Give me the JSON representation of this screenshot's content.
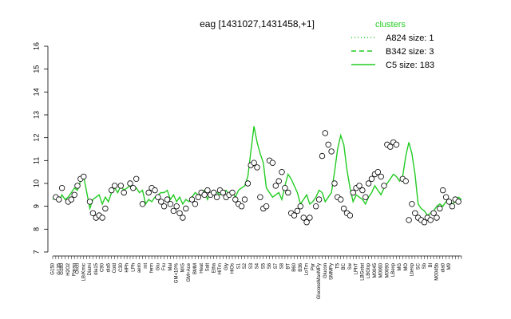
{
  "chart_data": {
    "type": "line",
    "title": "eag [1431027,1431458,+1]",
    "ylim": [
      7,
      16
    ],
    "yticks": [
      "7",
      "8",
      "9",
      "10",
      "11",
      "12",
      "13",
      "14",
      "15",
      "16"
    ],
    "legend": {
      "title": "clusters",
      "placement": "top-right",
      "entries": [
        {
          "label": "A824 size: 1",
          "style": "dotted"
        },
        {
          "label": "B342 size: 3",
          "style": "dashed"
        },
        {
          "label": "C5 size: 183",
          "style": "solid"
        }
      ]
    },
    "series_color": "#22cc22",
    "x_labels": [
      "G150",
      "G135",
      "G180",
      "H2O2",
      "Paraq",
      "Oxctl",
      "LB/Kmic",
      "Diami",
      "dia15",
      "C90",
      "dia5",
      "Cold",
      "C30",
      "HPh",
      "LPh",
      "aero",
      "mt",
      "ferm",
      "Glu",
      "Fru",
      "Mal",
      "GM+10%",
      "M/G",
      "GM+Ace",
      "BMM",
      "Heat",
      "Salt",
      "Etha",
      "HiTm",
      "Gly",
      "HiOs",
      "S1",
      "S2",
      "S3",
      "S4",
      "S5",
      "S6",
      "S7",
      "S8",
      "BT",
      "B60",
      "B36",
      "LoTm",
      "Pyr",
      "GlucoseMaxMPy",
      "Glucon",
      "SMMPy",
      "T5",
      "BC",
      "Sw",
      "LPhT",
      "LBGstat",
      "LBGtrp",
      "M0045",
      "M0060",
      "M0090",
      "LBexp",
      "MG",
      "MO",
      "Lbexp",
      "SC",
      "Sb",
      "Bl",
      "M0045b",
      "dia0",
      "M9"
    ],
    "x_label_indices": [
      0,
      2,
      3,
      5,
      7,
      8,
      10,
      12,
      14,
      16,
      18,
      20,
      22,
      24,
      26,
      28,
      30,
      32,
      34,
      36,
      38,
      40,
      42,
      44,
      46,
      48,
      50,
      52,
      54,
      56,
      58,
      60,
      62,
      64,
      66,
      68,
      70,
      72,
      74,
      76,
      78,
      80,
      82,
      84,
      86,
      88,
      90,
      92,
      94,
      96,
      98,
      100,
      102,
      104,
      106,
      108,
      110,
      112,
      114,
      116,
      118,
      120,
      122,
      124,
      126,
      128
    ],
    "line_values": [
      9.3,
      9.4,
      9.2,
      9.5,
      9.3,
      9.4,
      9.6,
      9.8,
      9.7,
      10.1,
      10.3,
      9.6,
      8.9,
      9.3,
      9.4,
      9.5,
      9.1,
      9.4,
      9.2,
      9.6,
      9.8,
      9.6,
      9.9,
      9.7,
      9.8,
      9.9,
      9.7,
      9.8,
      9.6,
      9.7,
      9.1,
      9.3,
      9.2,
      9.4,
      9.5,
      9.6,
      9.6,
      9.7,
      9.3,
      9.5,
      9.2,
      9.4,
      9.1,
      9.3,
      9.2,
      9.4,
      9.6,
      9.5,
      9.6,
      9.7,
      9.3,
      9.6,
      9.7,
      9.6,
      9.5,
      9.6,
      9.7,
      9.5,
      9.6,
      9.4,
      9.7,
      9.8,
      9.9,
      10.3,
      11.4,
      12.5,
      11.8,
      11.3,
      10.9,
      9.8,
      9.6,
      9.4,
      9.5,
      9.6,
      9.3,
      9.9,
      10.4,
      10.2,
      9.9,
      9.6,
      9.1,
      9.3,
      9.5,
      9.1,
      9.2,
      9.4,
      9.7,
      9.6,
      9.2,
      9.4,
      9.6,
      10.5,
      11.5,
      12.1,
      11.7,
      10.6,
      9.8,
      9.2,
      9.5,
      9.4,
      9.3,
      9.1,
      9.4,
      9.6,
      9.9,
      9.7,
      9.5,
      9.8,
      10.0,
      10.2,
      10.4,
      10.3,
      10.1,
      10.3,
      11.2,
      11.8,
      11.3,
      10.4,
      9.1,
      8.9,
      8.8,
      8.6,
      8.7,
      8.8,
      9.0,
      9.1,
      9.0,
      9.2,
      9.3,
      9.1,
      9.2,
      9.4,
      9.3
    ],
    "point_values": [
      [
        1,
        9.4
      ],
      [
        2,
        9.3
      ],
      [
        3,
        9.8
      ],
      [
        5,
        9.2
      ],
      [
        6,
        9.3
      ],
      [
        7,
        9.5
      ],
      [
        8,
        9.9
      ],
      [
        9,
        10.2
      ],
      [
        10,
        10.3
      ],
      [
        12,
        9.2
      ],
      [
        13,
        8.7
      ],
      [
        14,
        8.5
      ],
      [
        15,
        8.6
      ],
      [
        16,
        8.5
      ],
      [
        17,
        8.9
      ],
      [
        19,
        9.7
      ],
      [
        20,
        9.9
      ],
      [
        22,
        9.9
      ],
      [
        23,
        9.6
      ],
      [
        25,
        10.0
      ],
      [
        26,
        9.8
      ],
      [
        27,
        10.2
      ],
      [
        29,
        9.1
      ],
      [
        31,
        9.6
      ],
      [
        32,
        9.8
      ],
      [
        33,
        9.7
      ],
      [
        34,
        9.4
      ],
      [
        35,
        9.2
      ],
      [
        36,
        9.0
      ],
      [
        37,
        9.3
      ],
      [
        38,
        9.1
      ],
      [
        39,
        8.8
      ],
      [
        40,
        9.0
      ],
      [
        41,
        8.7
      ],
      [
        42,
        8.5
      ],
      [
        43,
        8.9
      ],
      [
        45,
        9.3
      ],
      [
        46,
        9.1
      ],
      [
        47,
        9.4
      ],
      [
        48,
        9.6
      ],
      [
        49,
        9.5
      ],
      [
        50,
        9.7
      ],
      [
        51,
        9.5
      ],
      [
        52,
        9.6
      ],
      [
        53,
        9.4
      ],
      [
        54,
        9.7
      ],
      [
        55,
        9.6
      ],
      [
        56,
        9.4
      ],
      [
        57,
        9.5
      ],
      [
        58,
        9.6
      ],
      [
        59,
        9.3
      ],
      [
        60,
        9.1
      ],
      [
        61,
        9.0
      ],
      [
        62,
        9.3
      ],
      [
        63,
        10.0
      ],
      [
        64,
        10.8
      ],
      [
        65,
        10.9
      ],
      [
        66,
        10.7
      ],
      [
        67,
        9.4
      ],
      [
        68,
        8.9
      ],
      [
        69,
        9.0
      ],
      [
        70,
        11.0
      ],
      [
        71,
        10.9
      ],
      [
        72,
        9.9
      ],
      [
        73,
        10.1
      ],
      [
        74,
        10.5
      ],
      [
        75,
        9.8
      ],
      [
        76,
        9.6
      ],
      [
        77,
        8.7
      ],
      [
        78,
        8.6
      ],
      [
        79,
        8.8
      ],
      [
        80,
        9.0
      ],
      [
        81,
        8.5
      ],
      [
        82,
        8.3
      ],
      [
        83,
        8.5
      ],
      [
        85,
        9.0
      ],
      [
        86,
        9.3
      ],
      [
        87,
        11.2
      ],
      [
        88,
        12.2
      ],
      [
        89,
        11.7
      ],
      [
        90,
        11.4
      ],
      [
        91,
        10.0
      ],
      [
        92,
        9.4
      ],
      [
        93,
        9.3
      ],
      [
        94,
        8.9
      ],
      [
        95,
        8.7
      ],
      [
        96,
        8.6
      ],
      [
        97,
        9.6
      ],
      [
        98,
        9.8
      ],
      [
        99,
        9.9
      ],
      [
        100,
        9.7
      ],
      [
        101,
        9.4
      ],
      [
        102,
        10.0
      ],
      [
        103,
        10.2
      ],
      [
        104,
        10.4
      ],
      [
        105,
        10.5
      ],
      [
        106,
        10.3
      ],
      [
        107,
        9.9
      ],
      [
        108,
        11.7
      ],
      [
        109,
        11.6
      ],
      [
        110,
        11.8
      ],
      [
        111,
        11.7
      ],
      [
        113,
        10.2
      ],
      [
        114,
        10.1
      ],
      [
        115,
        8.4
      ],
      [
        116,
        9.1
      ],
      [
        117,
        8.7
      ],
      [
        118,
        8.5
      ],
      [
        119,
        8.4
      ],
      [
        120,
        8.3
      ],
      [
        121,
        8.5
      ],
      [
        122,
        8.4
      ],
      [
        123,
        8.7
      ],
      [
        124,
        8.5
      ],
      [
        125,
        8.9
      ],
      [
        126,
        9.7
      ],
      [
        127,
        9.4
      ],
      [
        128,
        9.2
      ],
      [
        129,
        9.0
      ],
      [
        130,
        9.3
      ],
      [
        131,
        9.2
      ]
    ]
  }
}
